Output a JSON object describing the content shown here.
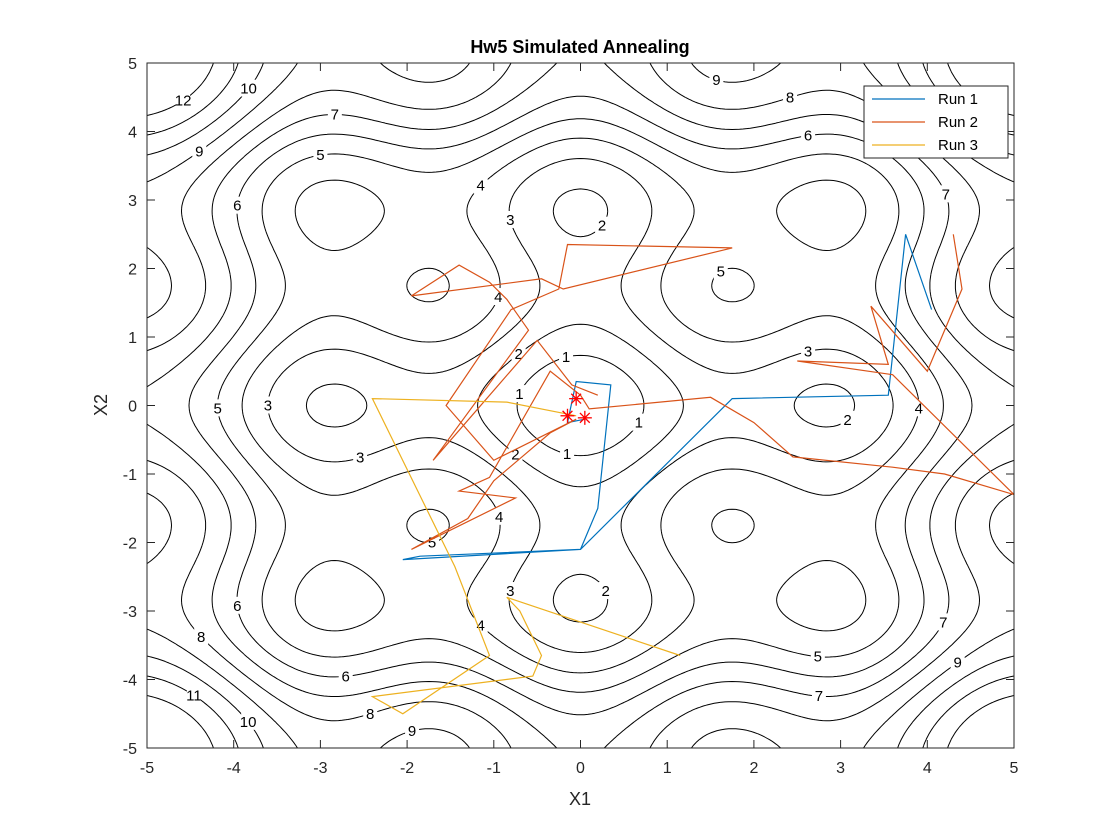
{
  "chart_data": {
    "type": "line",
    "title": "Hw5 Simulated Annealing",
    "xlabel": "X1",
    "ylabel": "X2",
    "xlim": [
      -5,
      5
    ],
    "ylim": [
      -5,
      5
    ],
    "xticks": [
      -5,
      -4,
      -3,
      -2,
      -1,
      0,
      1,
      2,
      3,
      4,
      5
    ],
    "yticks": [
      -5,
      -4,
      -3,
      -2,
      -1,
      0,
      1,
      2,
      3,
      4,
      5
    ],
    "grid": false,
    "legend_position": "top-right",
    "contour": {
      "levels": [
        1,
        2,
        3,
        4,
        5,
        6,
        7,
        8,
        9,
        10,
        11,
        12
      ],
      "color": "#000000"
    },
    "series": [
      {
        "name": "Run 1",
        "color": "#0072BD",
        "x": [
          4.05,
          3.75,
          3.55,
          1.75,
          0.0,
          -2.05,
          -1.85,
          0.0,
          0.2,
          0.35,
          -0.05,
          -0.15,
          0.05
        ],
        "y": [
          1.4,
          2.5,
          0.15,
          0.1,
          -2.1,
          -2.25,
          -2.2,
          -2.1,
          -1.5,
          0.3,
          0.35,
          -0.25,
          -0.2
        ]
      },
      {
        "name": "Run 2",
        "color": "#D95319",
        "x": [
          4.3,
          4.4,
          4.0,
          3.35,
          3.55,
          2.5,
          3.6,
          5.0,
          4.2,
          3.6,
          2.45,
          2.0,
          1.5,
          0.1,
          0.0,
          -0.35,
          -1.05,
          -1.4,
          -0.75,
          -1.95,
          -1.3,
          -1.0,
          -0.35,
          -0.05,
          -1.0,
          -1.55,
          -0.8,
          -0.25,
          -0.15,
          1.75,
          -0.2,
          -0.45,
          -1.95,
          -1.4,
          -1.05,
          -0.85,
          -0.6,
          -1.7,
          -0.5,
          -0.1,
          0.2
        ],
        "y": [
          2.5,
          1.7,
          0.5,
          1.45,
          0.6,
          0.65,
          0.45,
          -1.3,
          -1.0,
          -0.9,
          -0.75,
          -0.25,
          0.12,
          -0.05,
          0.15,
          0.5,
          -1.05,
          -1.25,
          -1.35,
          -2.1,
          -1.65,
          -1.1,
          -0.4,
          -0.2,
          -0.8,
          0.0,
          1.4,
          1.7,
          2.35,
          2.3,
          1.7,
          1.85,
          1.6,
          2.05,
          1.8,
          1.55,
          1.1,
          -0.8,
          0.95,
          0.3,
          0.15
        ]
      },
      {
        "name": "Run 3",
        "color": "#EDB120",
        "x": [
          1.15,
          -0.85,
          -0.7,
          -0.45,
          -0.55,
          -2.4,
          -2.05,
          -1.05,
          -1.45,
          -2.4,
          -0.85,
          -0.05
        ],
        "y": [
          -3.65,
          -2.8,
          -3.0,
          -3.65,
          -3.95,
          -4.25,
          -4.5,
          -3.65,
          -2.35,
          0.1,
          0.05,
          -0.15
        ]
      }
    ],
    "markers": {
      "symbol": "*",
      "color": "#FF0000",
      "points": [
        [
          -0.05,
          0.1
        ],
        [
          -0.15,
          -0.15
        ],
        [
          0.05,
          -0.18
        ]
      ]
    }
  }
}
